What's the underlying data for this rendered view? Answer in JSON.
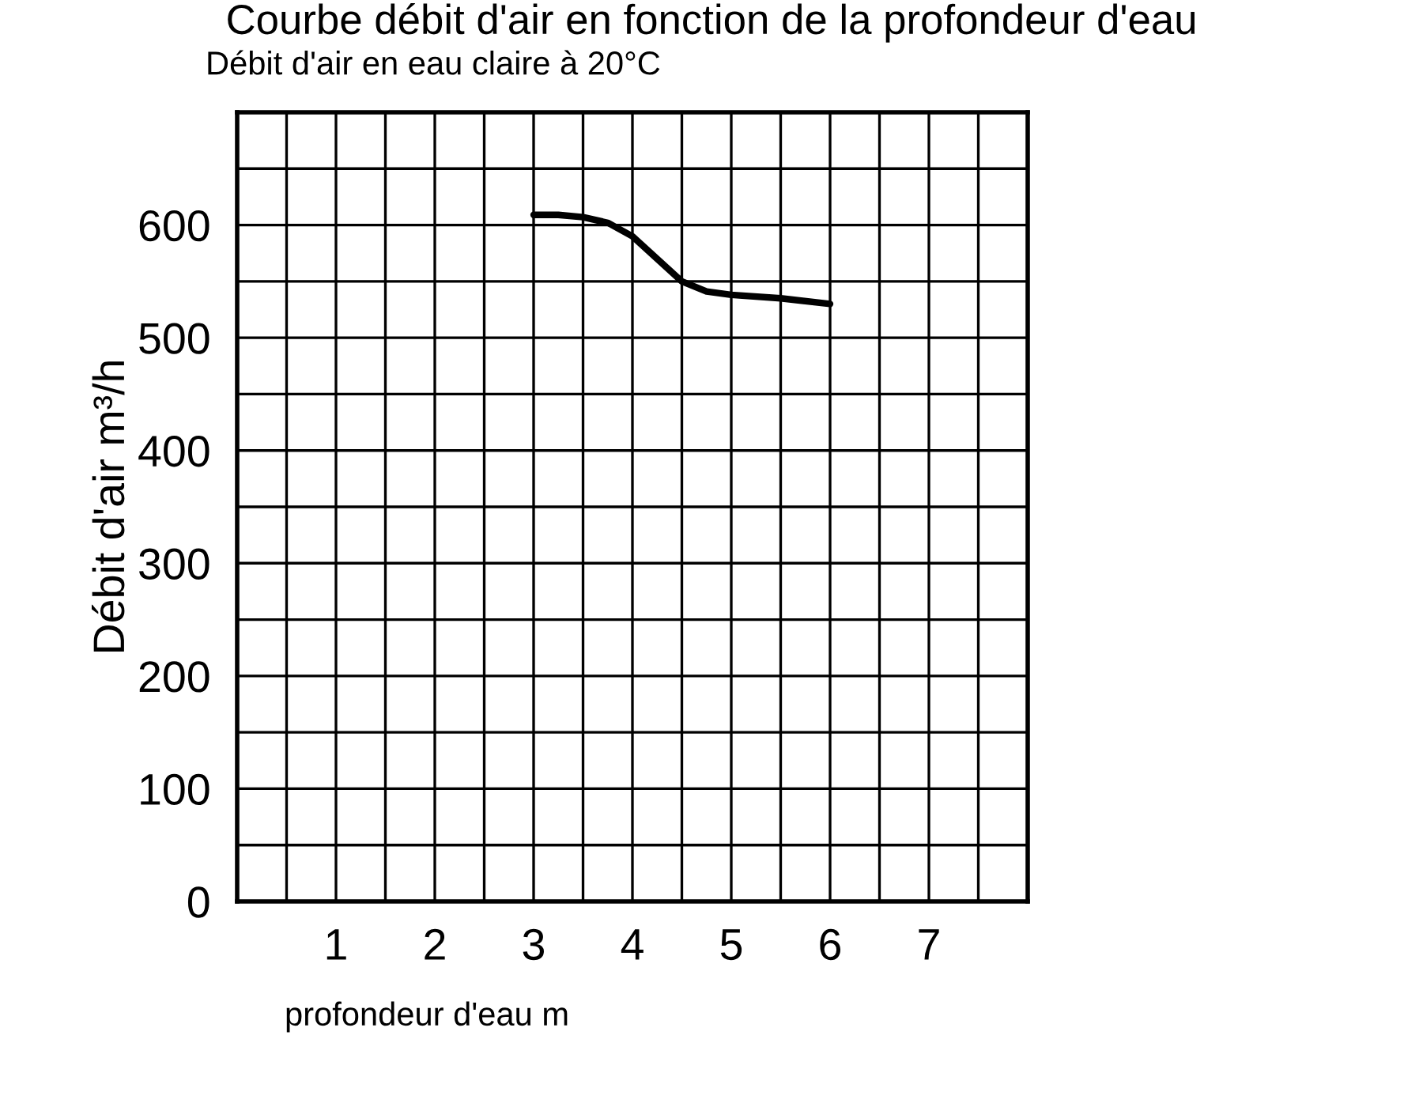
{
  "chart_data": {
    "type": "line",
    "title": "Courbe débit d'air en fonction de la profondeur d'eau",
    "subtitle": "Débit d'air en eau claire à 20°C",
    "xlabel": "profondeur d'eau m",
    "ylabel": "Débit d'air m³/h",
    "series": [
      {
        "color": "#000000",
        "x": [
          3.0,
          3.25,
          3.5,
          3.75,
          4.0,
          4.25,
          4.5,
          4.75,
          5.0,
          5.5,
          6.0
        ],
        "values": [
          609,
          609,
          607,
          602,
          590,
          570,
          550,
          541,
          538,
          535,
          530
        ]
      }
    ],
    "xlim": [
      0,
      8
    ],
    "ylim": [
      0,
      700
    ],
    "xticks": [
      {
        "value": 0,
        "label": null
      },
      {
        "value": 0.5,
        "label": null
      },
      1,
      {
        "value": 1.5,
        "label": null
      },
      2,
      {
        "value": 2.5,
        "label": null
      },
      3,
      {
        "value": 3.5,
        "label": null
      },
      4,
      {
        "value": 4.5,
        "label": null
      },
      5,
      {
        "value": 5.5,
        "label": null
      },
      6,
      {
        "value": 6.5,
        "label": null
      },
      7,
      {
        "value": 7.5,
        "label": null
      },
      {
        "value": 8,
        "label": null
      }
    ],
    "yticks": [
      0,
      {
        "value": 50,
        "label": null
      },
      100,
      {
        "value": 150,
        "label": null
      },
      200,
      {
        "value": 250,
        "label": null
      },
      300,
      {
        "value": 350,
        "label": null
      },
      400,
      {
        "value": 450,
        "label": null
      },
      500,
      {
        "value": 550,
        "label": null
      },
      600,
      {
        "value": 650,
        "label": null
      },
      {
        "value": 700,
        "label": null
      }
    ],
    "grid": true,
    "line_style": "solid",
    "marker": "none"
  }
}
